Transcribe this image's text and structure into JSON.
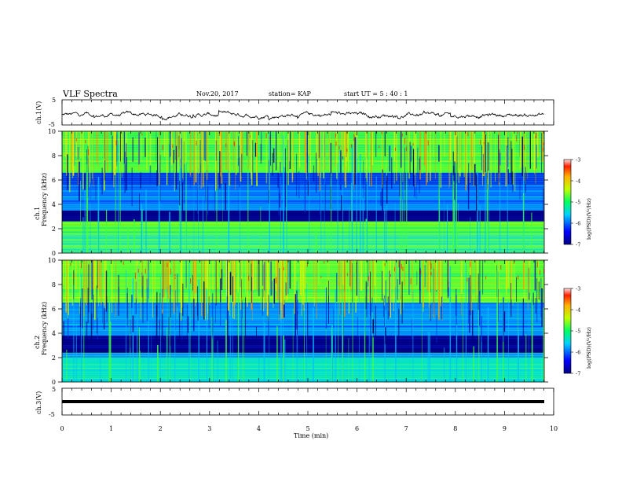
{
  "header": {
    "title": "VLF  Spectra",
    "date": "Nov.20, 2017",
    "station": "station= KAP",
    "start": "start  UT  =   5  : 40 : 1"
  },
  "chart_data": [
    {
      "type": "line",
      "panel": "ch1-waveform",
      "ylabel": "ch.1(V)",
      "ylim": [
        -5,
        5
      ],
      "yticks": [
        "5",
        "-5"
      ],
      "xlim": [
        0,
        10
      ],
      "color": "#000000",
      "series_summary": "noisy waveform around -1 V spanning roughly -3 to 1 V over 0-9.8 min"
    },
    {
      "type": "heatmap",
      "panel": "ch1-spectrogram",
      "ylabel": "ch.1\nFrequency  (kHz)",
      "ylim": [
        0,
        10
      ],
      "yticks": [
        "0",
        "2",
        "4",
        "6",
        "8",
        "10"
      ],
      "xlim": [
        0,
        10
      ],
      "colorbar_label": "log(PSD)(V²/Hz)",
      "colorbar_ticks": [
        "-3",
        "-4",
        "-5",
        "-6",
        "-7"
      ],
      "bands_khz": [
        {
          "from": 0,
          "to": 1.6,
          "level": "green-cyan"
        },
        {
          "from": 1.6,
          "to": 2.6,
          "level": "green-yellow"
        },
        {
          "from": 2.6,
          "to": 3.5,
          "level": "dark-blue"
        },
        {
          "from": 3.5,
          "to": 5.6,
          "level": "blue-cyan"
        },
        {
          "from": 5.6,
          "to": 6.6,
          "level": "blue"
        },
        {
          "from": 6.6,
          "to": 10,
          "level": "green-yellow"
        }
      ]
    },
    {
      "type": "heatmap",
      "panel": "ch2-spectrogram",
      "ylabel": "ch.2\nFrequency  (kHz)",
      "ylim": [
        0,
        10
      ],
      "yticks": [
        "0",
        "2",
        "4",
        "6",
        "8",
        "10"
      ],
      "xlim": [
        0,
        10
      ],
      "colorbar_label": "log(PSD)(V²/Hz)",
      "colorbar_ticks": [
        "-3",
        "-4",
        "-5",
        "-6",
        "-7"
      ],
      "bands_khz": [
        {
          "from": 0,
          "to": 2.0,
          "level": "cyan-green"
        },
        {
          "from": 2.0,
          "to": 2.4,
          "level": "blue-green"
        },
        {
          "from": 2.4,
          "to": 3.8,
          "level": "dark-blue"
        },
        {
          "from": 3.8,
          "to": 6.5,
          "level": "blue-cyan"
        },
        {
          "from": 6.5,
          "to": 10,
          "level": "green-yellow"
        }
      ]
    },
    {
      "type": "line",
      "panel": "ch3-waveform",
      "ylabel": "ch.3(V)",
      "ylim": [
        -5,
        5
      ],
      "yticks": [
        "5",
        "0",
        "-5"
      ],
      "xlim": [
        0,
        10
      ],
      "values_constant": 0,
      "color": "#000000"
    }
  ],
  "xaxis": {
    "label": "Time  (min)",
    "ticks": [
      "0",
      "1",
      "2",
      "3",
      "4",
      "5",
      "6",
      "7",
      "8",
      "9",
      "10"
    ]
  }
}
